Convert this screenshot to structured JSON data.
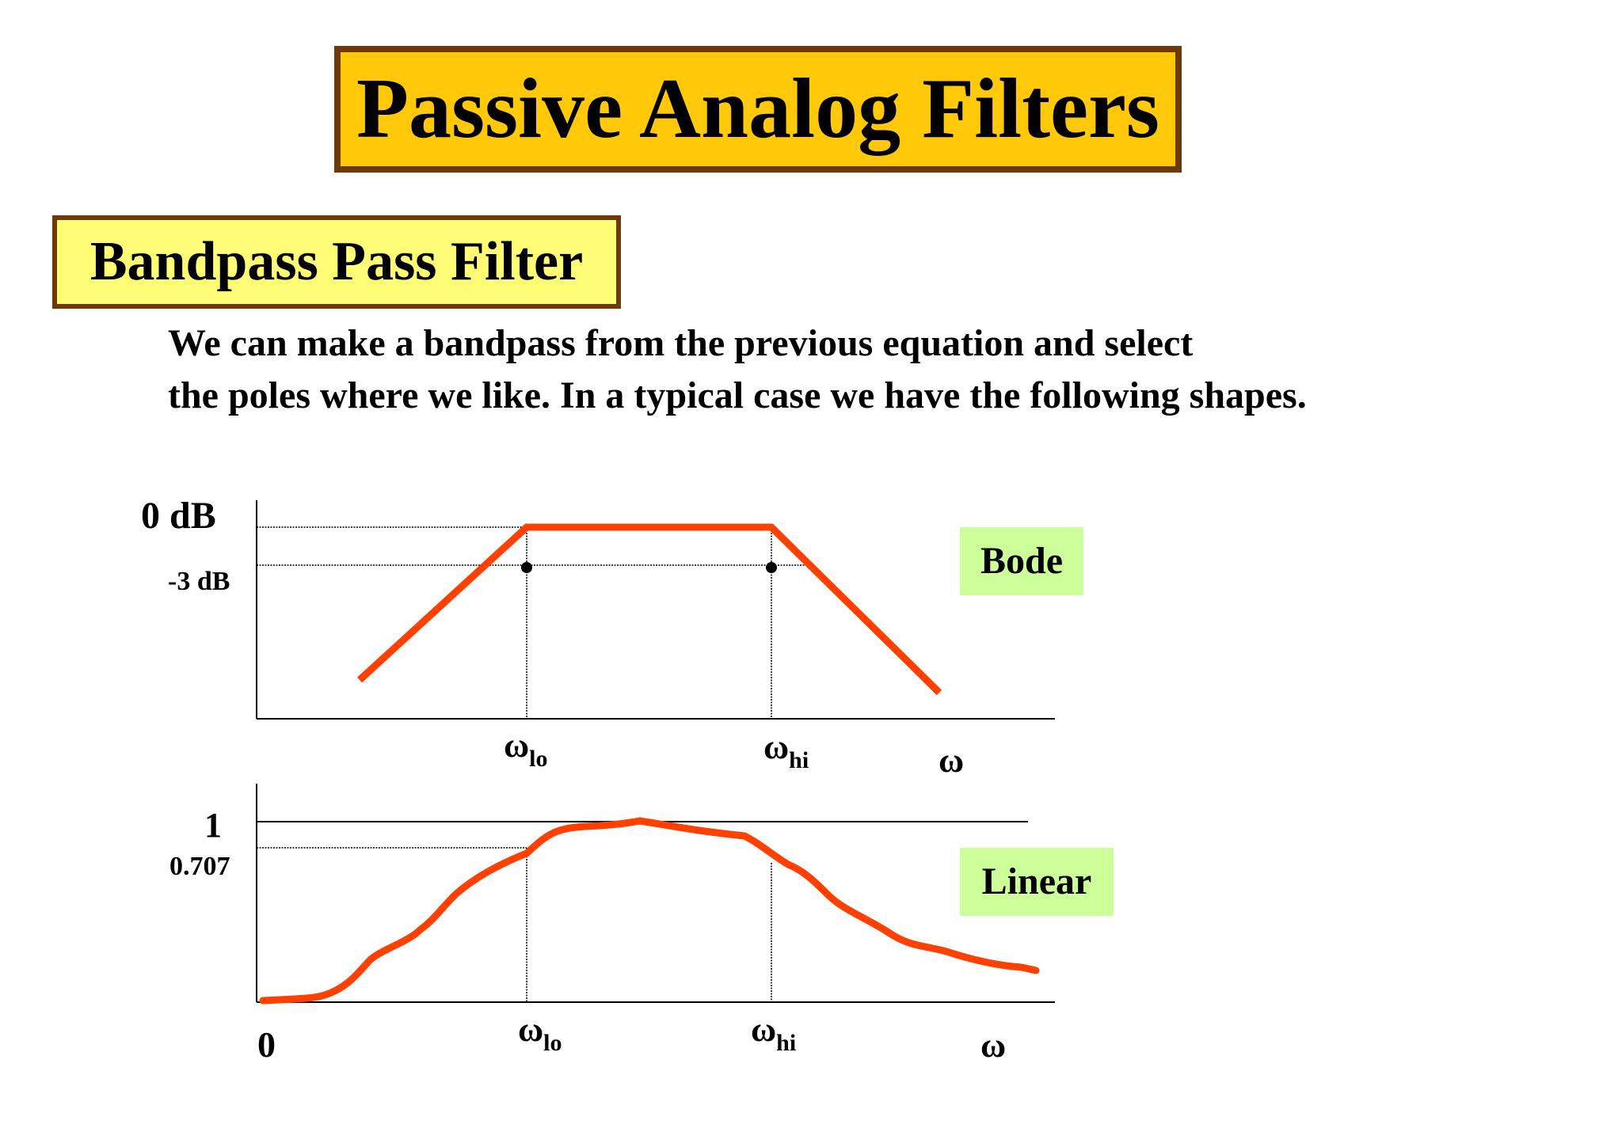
{
  "title": "Passive Analog Filters",
  "subtitle": "Bandpass Pass Filter",
  "description": [
    "We can make a bandpass from the previous equation and select",
    "the poles where we like.  In a typical case we have the following shapes."
  ],
  "bode_plot": {
    "tag": "Bode",
    "y_label_top": "0 dB",
    "y_label_3db": "-3 dB",
    "x_labels": {
      "w_lo": "ω",
      "w_lo_sub": "lo",
      "w_hi": "ω",
      "w_hi_sub": "hi",
      "w": "ω"
    }
  },
  "linear_plot": {
    "tag": "Linear",
    "y_label_one": "1",
    "y_label_707": "0.707",
    "origin_label": "0",
    "x_labels": {
      "w_lo": "ω",
      "w_lo_sub": "lo",
      "w_hi": "ω",
      "w_hi_sub": "hi",
      "w": "ω"
    }
  },
  "colors": {
    "curve": "#ff4000",
    "title_bg": "#ffc809",
    "subtitle_bg": "#fefc74",
    "border": "#6b3a07",
    "tag_bg": "#ccff99"
  }
}
